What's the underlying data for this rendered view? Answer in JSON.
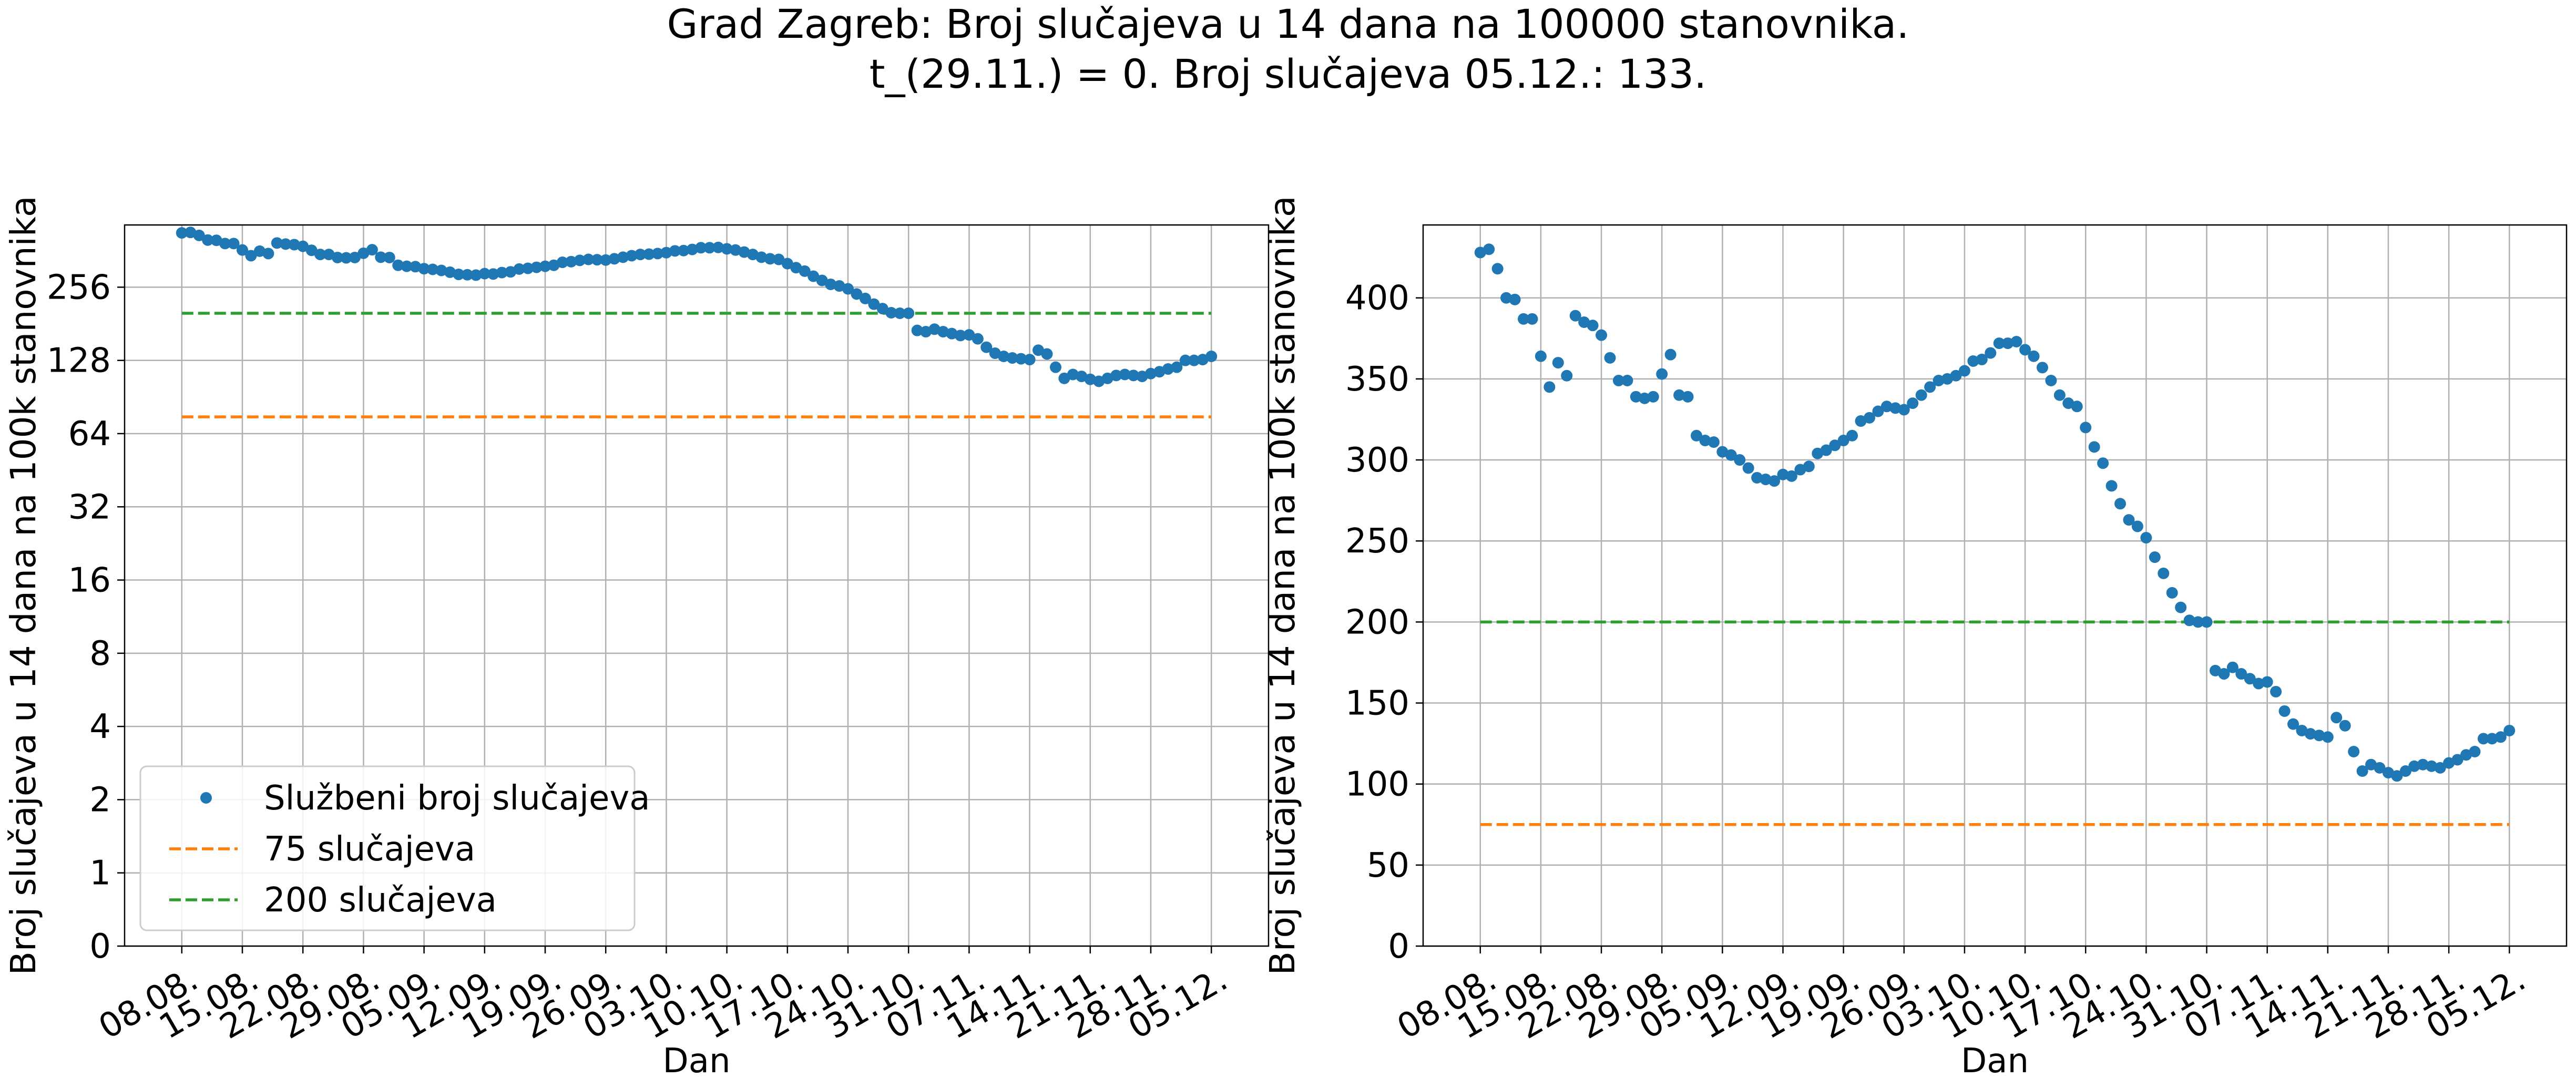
{
  "figure": {
    "title_line1": "Grad Zagreb: Broj slučajeva u 14 dana na 100000 stanovnika.",
    "title_line2": "t_(29.11.) = 0. Broj slučajeva 05.12.: 133."
  },
  "colors": {
    "data": "#1f77b4",
    "line75": "#ff7f0e",
    "line200": "#2ca02c",
    "grid": "#b0b0b0"
  },
  "chart_data": [
    {
      "type": "scatter",
      "scale": "log2",
      "xlabel": "Dan",
      "ylabel": "Broj slučajeva u 14 dana na 100k stanovnika",
      "x_ticks": [
        "08.08.",
        "15.08.",
        "22.08.",
        "29.08.",
        "05.09.",
        "12.09.",
        "19.09.",
        "26.09.",
        "03.10.",
        "10.10.",
        "17.10.",
        "24.10.",
        "31.10.",
        "07.11.",
        "14.11.",
        "21.11.",
        "28.11.",
        "05.12."
      ],
      "y_ticks": [
        0,
        1,
        2,
        4,
        8,
        16,
        32,
        64,
        128,
        256
      ],
      "y_tick_labels": [
        "0",
        "1",
        "2",
        "4",
        "8",
        "16",
        "32",
        "64",
        "128",
        "256"
      ],
      "legend_position": "lower-left",
      "legend": [
        "Službeni broj slučajeva",
        "75 slučajeva",
        "200 slučajeva"
      ],
      "grid": true
    },
    {
      "type": "scatter",
      "scale": "linear",
      "xlabel": "Dan",
      "ylabel": "Broj slučajeva u 14 dana na 100k stanovnika",
      "ylim": [
        0,
        445
      ],
      "x_ticks": [
        "08.08.",
        "15.08.",
        "22.08.",
        "29.08.",
        "05.09.",
        "12.09.",
        "19.09.",
        "26.09.",
        "03.10.",
        "10.10.",
        "17.10.",
        "24.10.",
        "31.10.",
        "07.11.",
        "14.11.",
        "21.11.",
        "28.11.",
        "05.12."
      ],
      "y_ticks": [
        0,
        50,
        100,
        150,
        200,
        250,
        300,
        350,
        400
      ],
      "y_tick_labels": [
        "0",
        "50",
        "100",
        "150",
        "200",
        "250",
        "300",
        "350",
        "400"
      ],
      "grid": true
    }
  ],
  "series": {
    "name": "Službeni broj slučajeva",
    "start_date": "08.08.",
    "end_date": "05.12.",
    "values": [
      428,
      430,
      418,
      400,
      399,
      387,
      387,
      364,
      345,
      360,
      352,
      389,
      385,
      383,
      377,
      363,
      349,
      349,
      339,
      338,
      339,
      353,
      365,
      340,
      339,
      315,
      312,
      311,
      305,
      303,
      300,
      295,
      289,
      288,
      287,
      291,
      290,
      294,
      296,
      304,
      306,
      309,
      312,
      315,
      324,
      326,
      330,
      333,
      332,
      331,
      335,
      340,
      345,
      349,
      350,
      352,
      355,
      361,
      362,
      366,
      372,
      372,
      373,
      368,
      364,
      357,
      349,
      340,
      335,
      333,
      320,
      308,
      298,
      284,
      273,
      263,
      259,
      252,
      240,
      230,
      218,
      209,
      201,
      200,
      200,
      170,
      168,
      172,
      168,
      165,
      162,
      163,
      157,
      145,
      137,
      133,
      131,
      130,
      129,
      141,
      136,
      120,
      108,
      112,
      110,
      107,
      105,
      108,
      111,
      112,
      111,
      110,
      113,
      115,
      118,
      120,
      128,
      128,
      129,
      133
    ]
  },
  "thresholds": [
    {
      "label": "75 slučajeva",
      "value": 75
    },
    {
      "label": "200 slučajeva",
      "value": 200
    }
  ]
}
